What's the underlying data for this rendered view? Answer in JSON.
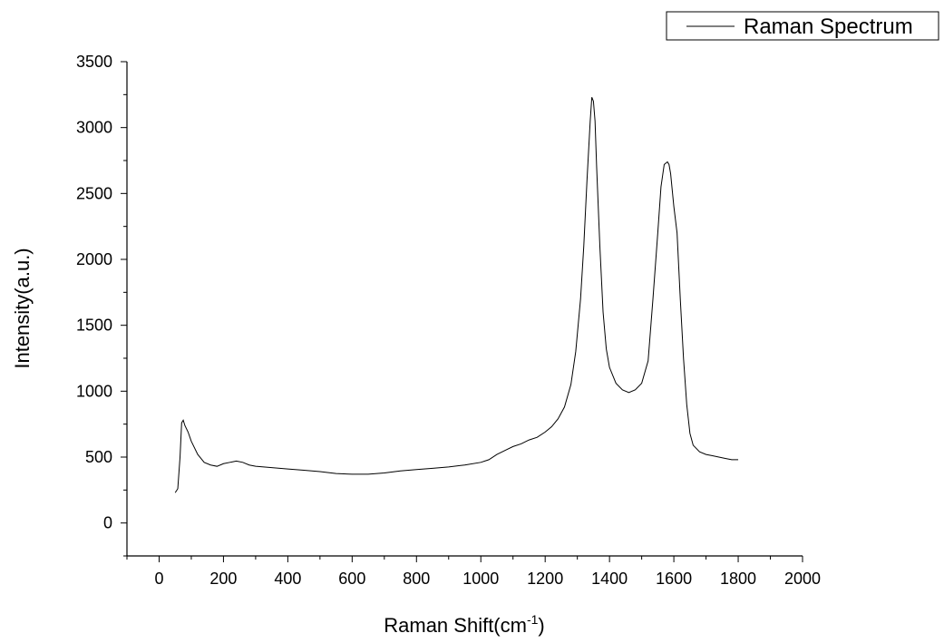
{
  "chart_data": {
    "type": "line",
    "title": "",
    "xlabel": "Raman Shift(cm",
    "xlabel_sup": "-1",
    "xlabel_suffix": ")",
    "ylabel": "Intensity(a.u.)",
    "xlim": [
      -100,
      2000
    ],
    "ylim": [
      -250,
      3500
    ],
    "x_ticks": [
      0,
      200,
      400,
      600,
      800,
      1000,
      1200,
      1400,
      1600,
      1800,
      2000
    ],
    "y_ticks": [
      0,
      500,
      1000,
      1500,
      2000,
      2500,
      3000,
      3500
    ],
    "grid": false,
    "legend": {
      "position": "top-right",
      "entries": [
        "Raman Spectrum"
      ]
    },
    "series": [
      {
        "name": "Raman Spectrum",
        "color": "#000000",
        "x": [
          50,
          58,
          65,
          70,
          75,
          80,
          90,
          100,
          120,
          140,
          160,
          180,
          200,
          220,
          240,
          260,
          280,
          300,
          350,
          400,
          450,
          500,
          550,
          600,
          650,
          700,
          750,
          800,
          850,
          900,
          950,
          1000,
          1025,
          1050,
          1075,
          1100,
          1125,
          1150,
          1175,
          1200,
          1220,
          1240,
          1260,
          1280,
          1295,
          1310,
          1320,
          1330,
          1340,
          1345,
          1350,
          1355,
          1360,
          1370,
          1380,
          1390,
          1400,
          1420,
          1440,
          1460,
          1480,
          1500,
          1520,
          1535,
          1550,
          1560,
          1570,
          1580,
          1585,
          1590,
          1600,
          1610,
          1620,
          1630,
          1640,
          1650,
          1660,
          1680,
          1700,
          1720,
          1740,
          1760,
          1780,
          1800
        ],
        "y": [
          230,
          260,
          500,
          760,
          780,
          740,
          690,
          620,
          520,
          460,
          440,
          430,
          450,
          460,
          470,
          460,
          440,
          430,
          420,
          410,
          400,
          390,
          375,
          370,
          370,
          380,
          395,
          405,
          415,
          425,
          440,
          460,
          480,
          520,
          550,
          580,
          600,
          630,
          650,
          690,
          730,
          790,
          880,
          1050,
          1300,
          1700,
          2100,
          2600,
          3050,
          3230,
          3200,
          3050,
          2700,
          2100,
          1600,
          1320,
          1180,
          1060,
          1010,
          990,
          1010,
          1060,
          1230,
          1700,
          2200,
          2550,
          2720,
          2740,
          2720,
          2650,
          2400,
          2200,
          1700,
          1250,
          900,
          680,
          590,
          540,
          520,
          510,
          500,
          490,
          480,
          480
        ]
      }
    ]
  }
}
